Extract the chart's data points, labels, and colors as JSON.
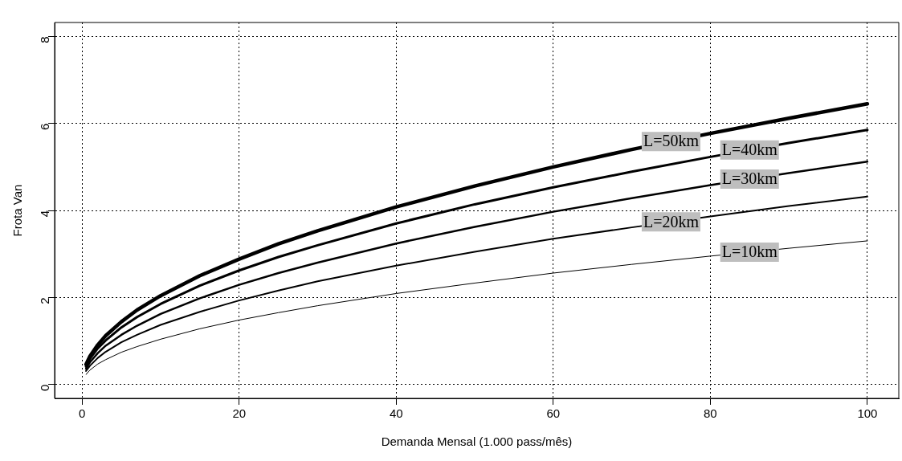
{
  "chart_data": {
    "type": "line",
    "xlabel": "Demanda Mensal (1.000 pass/mês)",
    "ylabel": "Frota Van",
    "x": [
      0.5,
      1,
      2,
      3,
      5,
      7,
      10,
      15,
      20,
      25,
      30,
      40,
      50,
      60,
      70,
      80,
      90,
      100
    ],
    "xlim": [
      -3.5,
      104
    ],
    "xticks": [
      0,
      20,
      40,
      60,
      80,
      100
    ],
    "ylim": [
      -0.32,
      8.32
    ],
    "yticks": [
      0,
      2,
      4,
      6,
      8
    ],
    "grid": true,
    "line_style": "solid",
    "marker": "none",
    "legend": false,
    "series": [
      {
        "name": "L=10km",
        "color": "#000000",
        "values": [
          0.23,
          0.33,
          0.47,
          0.57,
          0.74,
          0.87,
          1.04,
          1.28,
          1.48,
          1.65,
          1.81,
          2.09,
          2.33,
          2.56,
          2.76,
          2.95,
          3.13,
          3.3
        ]
      },
      {
        "name": "L=20km",
        "color": "#000000",
        "values": [
          0.31,
          0.43,
          0.61,
          0.75,
          0.97,
          1.14,
          1.37,
          1.67,
          1.93,
          2.16,
          2.37,
          2.73,
          3.05,
          3.35,
          3.61,
          3.86,
          4.1,
          4.32
        ]
      },
      {
        "name": "L=30km",
        "color": "#000000",
        "values": [
          0.36,
          0.51,
          0.72,
          0.89,
          1.14,
          1.35,
          1.62,
          1.98,
          2.29,
          2.56,
          2.8,
          3.24,
          3.62,
          3.97,
          4.28,
          4.58,
          4.86,
          5.12
        ]
      },
      {
        "name": "L=40km",
        "color": "#000000",
        "values": [
          0.41,
          0.59,
          0.83,
          1.01,
          1.31,
          1.55,
          1.85,
          2.27,
          2.62,
          2.93,
          3.2,
          3.7,
          4.14,
          4.53,
          4.89,
          5.23,
          5.55,
          5.85
        ]
      },
      {
        "name": "L=50km",
        "color": "#000000",
        "values": [
          0.46,
          0.65,
          0.91,
          1.12,
          1.44,
          1.71,
          2.04,
          2.5,
          2.88,
          3.23,
          3.53,
          4.08,
          4.56,
          5.0,
          5.4,
          5.77,
          6.12,
          6.45
        ]
      }
    ]
  }
}
